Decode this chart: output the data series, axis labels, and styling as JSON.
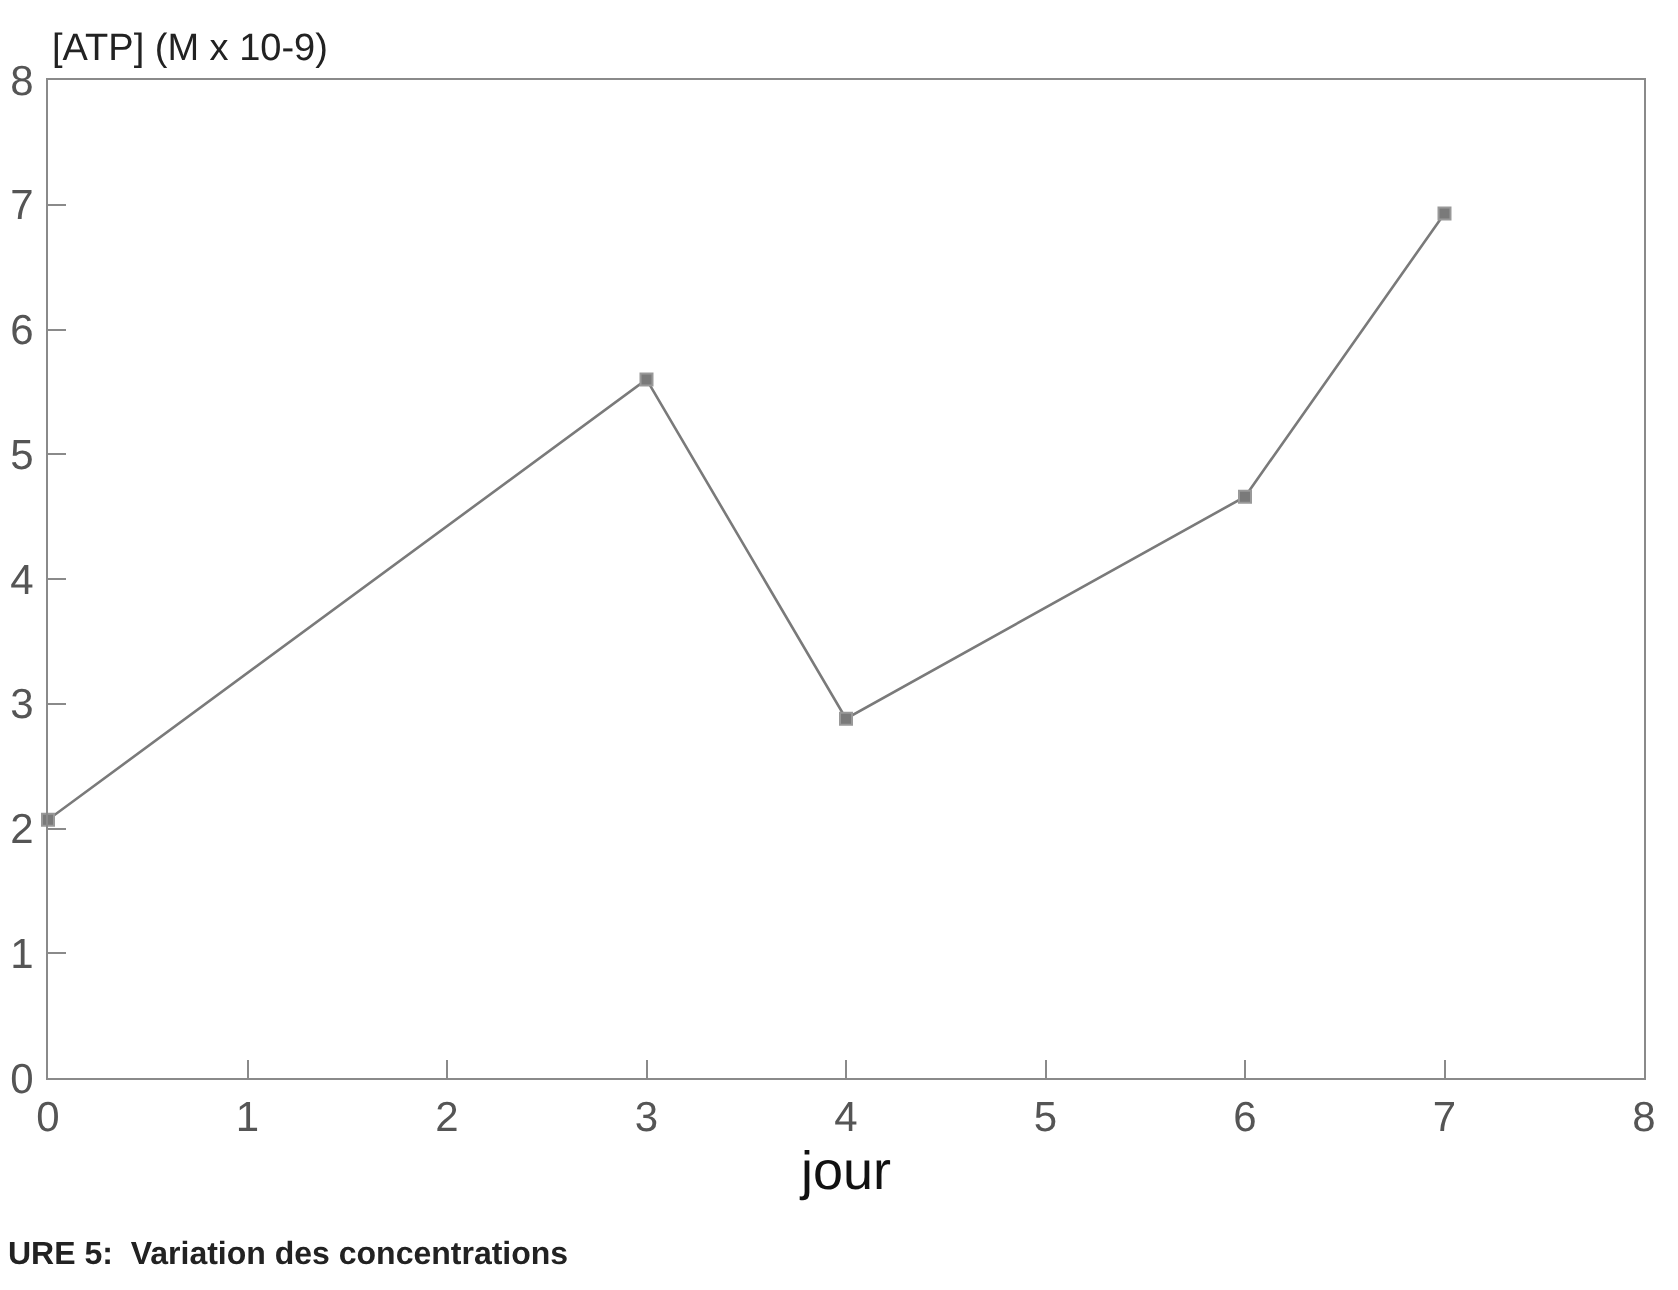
{
  "chart_data": {
    "type": "line",
    "ylabel": "[ATP] (M x 10-9)",
    "xlabel": "jour",
    "annotations": [
      "URE 5:  Variation des concentrations"
    ],
    "x": [
      0,
      3,
      4,
      6,
      7
    ],
    "series": [
      {
        "color": "#7a7a7a",
        "values": [
          2.07,
          5.6,
          2.88,
          4.66,
          6.93
        ]
      }
    ],
    "xlim": [
      0,
      8
    ],
    "ylim": [
      0,
      8
    ],
    "xticks": [
      0,
      1,
      2,
      3,
      4,
      5,
      6,
      7,
      8
    ],
    "yticks": [
      0,
      1,
      2,
      3,
      4,
      5,
      6,
      7,
      8
    ],
    "grid": false,
    "marker": "square",
    "line_style": "solid"
  }
}
